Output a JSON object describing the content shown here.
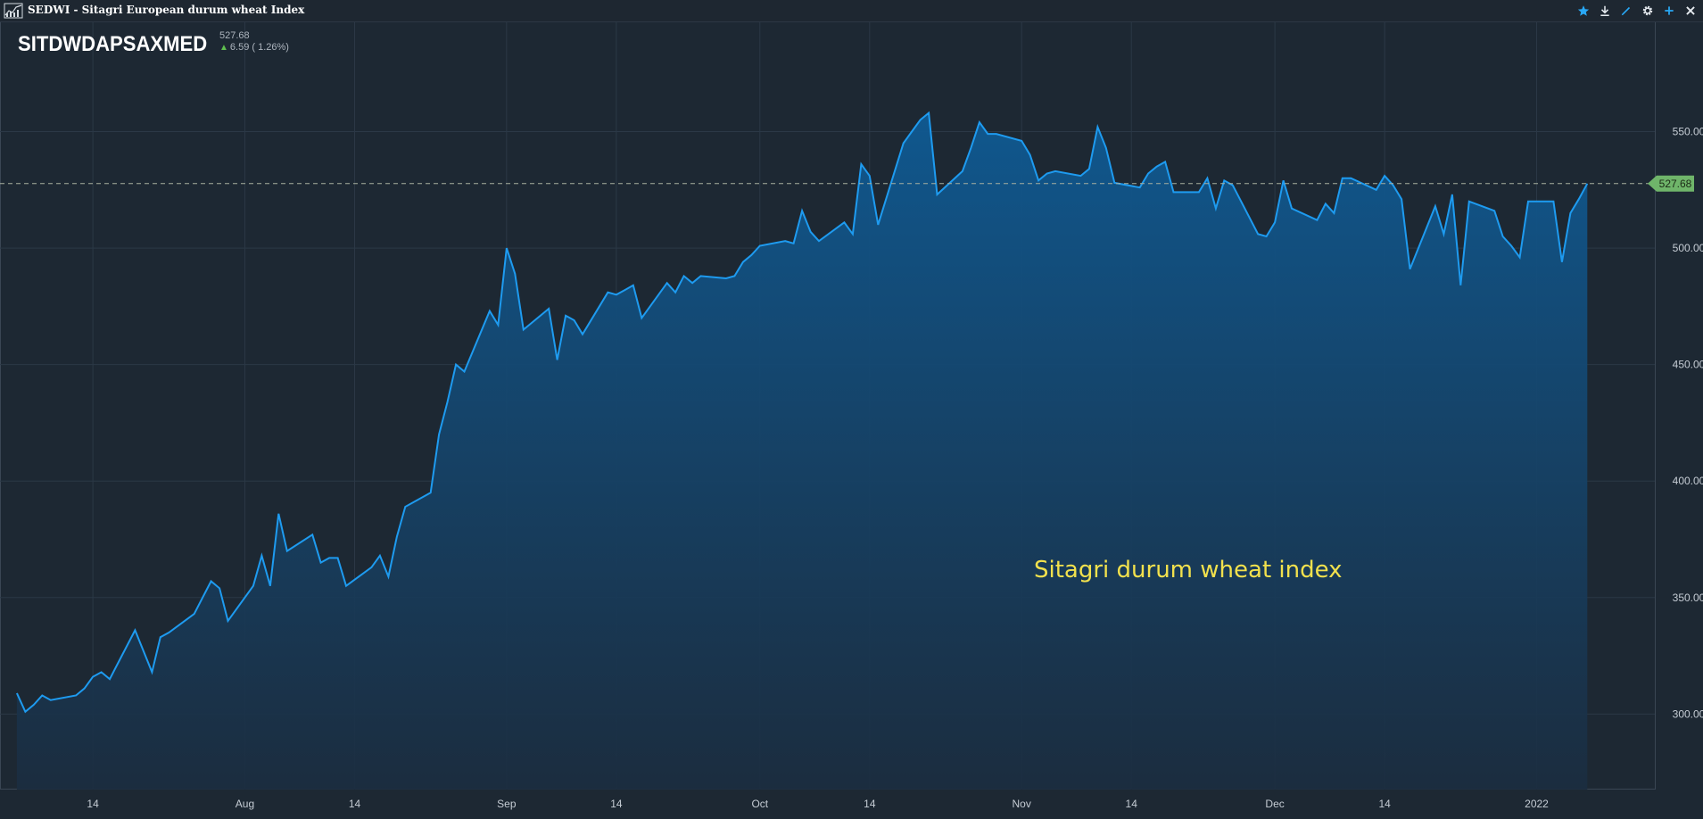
{
  "window": {
    "title": "SEDWI - Sitagri European durum wheat Index",
    "icons": [
      "chart-icon",
      "star-icon",
      "download-icon",
      "pen-icon",
      "gear-icon",
      "plus-icon",
      "close-icon"
    ]
  },
  "header": {
    "symbol": "SITDWDAPSAXMED",
    "last": "527.68",
    "change": "6.59 ( 1.26%)"
  },
  "colors": {
    "background": "#1d2833",
    "line": "#1e9bf0",
    "area_top": "#0f5a93",
    "area_bottom": "#1b2d40",
    "annotation": "#f2e14d",
    "badge": "#6fb56a",
    "up": "#5fbf4f"
  },
  "chart_data": {
    "type": "area",
    "title": "",
    "xlabel": "",
    "ylabel": "",
    "ylim": [
      267.6,
      596.9
    ],
    "y_ticks": [
      "300.00",
      "350.00",
      "400.00",
      "450.00",
      "500.00",
      "550.00"
    ],
    "y_tick_values": [
      300,
      350,
      400,
      450,
      500,
      550
    ],
    "x_range": [
      "2021-07-03",
      "2022-01-15"
    ],
    "x_ticks": [
      {
        "date": "2021-07-14",
        "label": "14"
      },
      {
        "date": "2021-08-01",
        "label": "Aug"
      },
      {
        "date": "2021-08-14",
        "label": "14"
      },
      {
        "date": "2021-09-01",
        "label": "Sep"
      },
      {
        "date": "2021-09-14",
        "label": "14"
      },
      {
        "date": "2021-10-01",
        "label": "Oct"
      },
      {
        "date": "2021-10-14",
        "label": "14"
      },
      {
        "date": "2021-11-01",
        "label": "Nov"
      },
      {
        "date": "2021-11-14",
        "label": "14"
      },
      {
        "date": "2021-12-01",
        "label": "Dec"
      },
      {
        "date": "2021-12-14",
        "label": "14"
      },
      {
        "date": "2022-01-01",
        "label": "2022"
      }
    ],
    "last_value": 527.68,
    "last_label": "527.68",
    "annotation": "Sitagri durum wheat index",
    "grid": true,
    "series": [
      {
        "values": [
          [
            "2021-07-05",
            309
          ],
          [
            "2021-07-06",
            301
          ],
          [
            "2021-07-07",
            304
          ],
          [
            "2021-07-08",
            308
          ],
          [
            "2021-07-09",
            306
          ],
          [
            "2021-07-12",
            308
          ],
          [
            "2021-07-13",
            311
          ],
          [
            "2021-07-14",
            316
          ],
          [
            "2021-07-15",
            318
          ],
          [
            "2021-07-16",
            315
          ],
          [
            "2021-07-19",
            336
          ],
          [
            "2021-07-20",
            327
          ],
          [
            "2021-07-21",
            318
          ],
          [
            "2021-07-22",
            333
          ],
          [
            "2021-07-23",
            335
          ],
          [
            "2021-07-26",
            343
          ],
          [
            "2021-07-27",
            350
          ],
          [
            "2021-07-28",
            357
          ],
          [
            "2021-07-29",
            354
          ],
          [
            "2021-07-30",
            340
          ],
          [
            "2021-08-02",
            355
          ],
          [
            "2021-08-03",
            368
          ],
          [
            "2021-08-04",
            355
          ],
          [
            "2021-08-05",
            386
          ],
          [
            "2021-08-06",
            370
          ],
          [
            "2021-08-09",
            377
          ],
          [
            "2021-08-10",
            365
          ],
          [
            "2021-08-11",
            367
          ],
          [
            "2021-08-12",
            367
          ],
          [
            "2021-08-13",
            355
          ],
          [
            "2021-08-16",
            363
          ],
          [
            "2021-08-17",
            368
          ],
          [
            "2021-08-18",
            359
          ],
          [
            "2021-08-19",
            376
          ],
          [
            "2021-08-20",
            389
          ],
          [
            "2021-08-23",
            395
          ],
          [
            "2021-08-24",
            420
          ],
          [
            "2021-08-25",
            434
          ],
          [
            "2021-08-26",
            450
          ],
          [
            "2021-08-27",
            447
          ],
          [
            "2021-08-30",
            473
          ],
          [
            "2021-08-31",
            467
          ],
          [
            "2021-09-01",
            500
          ],
          [
            "2021-09-02",
            489
          ],
          [
            "2021-09-03",
            465
          ],
          [
            "2021-09-06",
            474
          ],
          [
            "2021-09-07",
            452
          ],
          [
            "2021-09-08",
            471
          ],
          [
            "2021-09-09",
            469
          ],
          [
            "2021-09-10",
            463
          ],
          [
            "2021-09-13",
            481
          ],
          [
            "2021-09-14",
            480
          ],
          [
            "2021-09-15",
            482
          ],
          [
            "2021-09-16",
            484
          ],
          [
            "2021-09-17",
            470
          ],
          [
            "2021-09-20",
            485
          ],
          [
            "2021-09-21",
            481
          ],
          [
            "2021-09-22",
            488
          ],
          [
            "2021-09-23",
            485
          ],
          [
            "2021-09-24",
            488
          ],
          [
            "2021-09-27",
            487
          ],
          [
            "2021-09-28",
            488
          ],
          [
            "2021-09-29",
            494
          ],
          [
            "2021-09-30",
            497
          ],
          [
            "2021-10-01",
            501
          ],
          [
            "2021-10-04",
            503
          ],
          [
            "2021-10-05",
            502
          ],
          [
            "2021-10-06",
            516
          ],
          [
            "2021-10-07",
            507
          ],
          [
            "2021-10-08",
            503
          ],
          [
            "2021-10-11",
            511
          ],
          [
            "2021-10-12",
            506
          ],
          [
            "2021-10-13",
            536
          ],
          [
            "2021-10-14",
            531
          ],
          [
            "2021-10-15",
            510
          ],
          [
            "2021-10-18",
            545
          ],
          [
            "2021-10-19",
            550
          ],
          [
            "2021-10-20",
            555
          ],
          [
            "2021-10-21",
            558
          ],
          [
            "2021-10-22",
            523
          ],
          [
            "2021-10-25",
            533
          ],
          [
            "2021-10-26",
            543
          ],
          [
            "2021-10-27",
            554
          ],
          [
            "2021-10-28",
            549
          ],
          [
            "2021-10-29",
            549
          ],
          [
            "2021-11-01",
            546
          ],
          [
            "2021-11-02",
            540
          ],
          [
            "2021-11-03",
            529
          ],
          [
            "2021-11-04",
            532
          ],
          [
            "2021-11-05",
            533
          ],
          [
            "2021-11-08",
            531
          ],
          [
            "2021-11-09",
            534
          ],
          [
            "2021-11-10",
            552
          ],
          [
            "2021-11-11",
            543
          ],
          [
            "2021-11-12",
            528
          ],
          [
            "2021-11-15",
            526
          ],
          [
            "2021-11-16",
            532
          ],
          [
            "2021-11-17",
            535
          ],
          [
            "2021-11-18",
            537
          ],
          [
            "2021-11-19",
            524
          ],
          [
            "2021-11-22",
            524
          ],
          [
            "2021-11-23",
            530
          ],
          [
            "2021-11-24",
            517
          ],
          [
            "2021-11-25",
            529
          ],
          [
            "2021-11-26",
            527
          ],
          [
            "2021-11-29",
            506
          ],
          [
            "2021-11-30",
            505
          ],
          [
            "2021-12-01",
            511
          ],
          [
            "2021-12-02",
            529
          ],
          [
            "2021-12-03",
            517
          ],
          [
            "2021-12-06",
            512
          ],
          [
            "2021-12-07",
            519
          ],
          [
            "2021-12-08",
            515
          ],
          [
            "2021-12-09",
            530
          ],
          [
            "2021-12-10",
            530
          ],
          [
            "2021-12-13",
            525
          ],
          [
            "2021-12-14",
            531
          ],
          [
            "2021-12-15",
            527
          ],
          [
            "2021-12-16",
            521
          ],
          [
            "2021-12-17",
            491
          ],
          [
            "2021-12-20",
            518
          ],
          [
            "2021-12-21",
            506
          ],
          [
            "2021-12-22",
            523
          ],
          [
            "2021-12-23",
            484
          ],
          [
            "2021-12-24",
            520
          ],
          [
            "2021-12-27",
            516
          ],
          [
            "2021-12-28",
            505
          ],
          [
            "2021-12-29",
            501
          ],
          [
            "2021-12-30",
            496
          ],
          [
            "2021-12-31",
            520
          ],
          [
            "2022-01-03",
            520
          ],
          [
            "2022-01-04",
            494
          ],
          [
            "2022-01-05",
            515
          ],
          [
            "2022-01-06",
            521
          ],
          [
            "2022-01-07",
            527.68
          ]
        ]
      }
    ]
  }
}
